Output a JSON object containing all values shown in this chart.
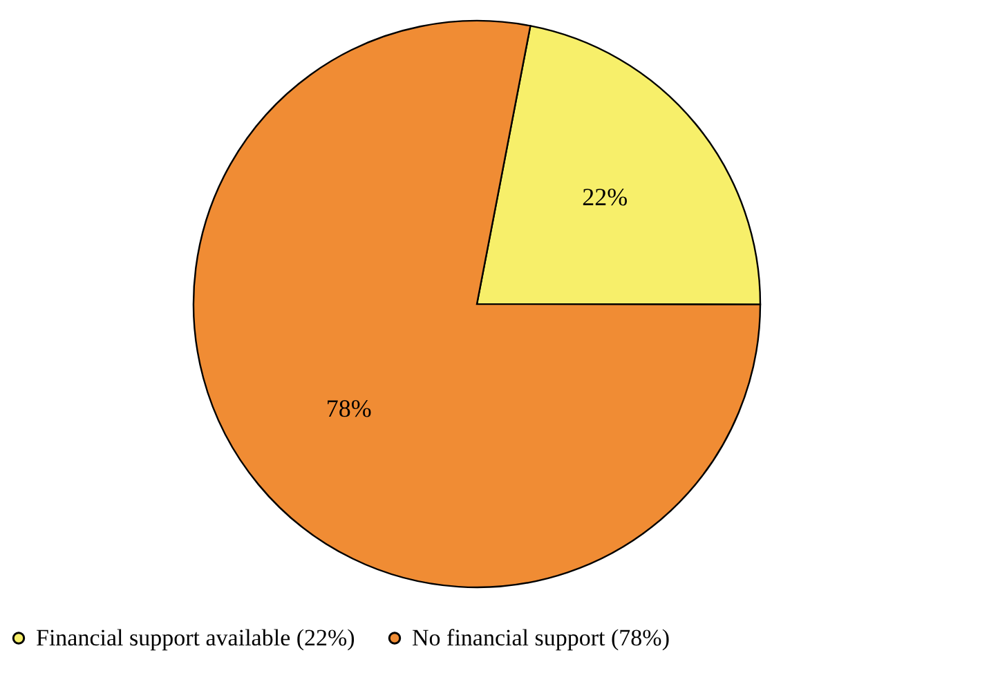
{
  "chart_data": {
    "type": "pie",
    "categories": [
      "Financial support available (22%)",
      "No financial support (78%)"
    ],
    "values": [
      22,
      78
    ],
    "colors": [
      "#f7ef6a",
      "#f08c34"
    ],
    "value_labels": [
      "22%",
      "78%"
    ],
    "legend": "bottom"
  }
}
